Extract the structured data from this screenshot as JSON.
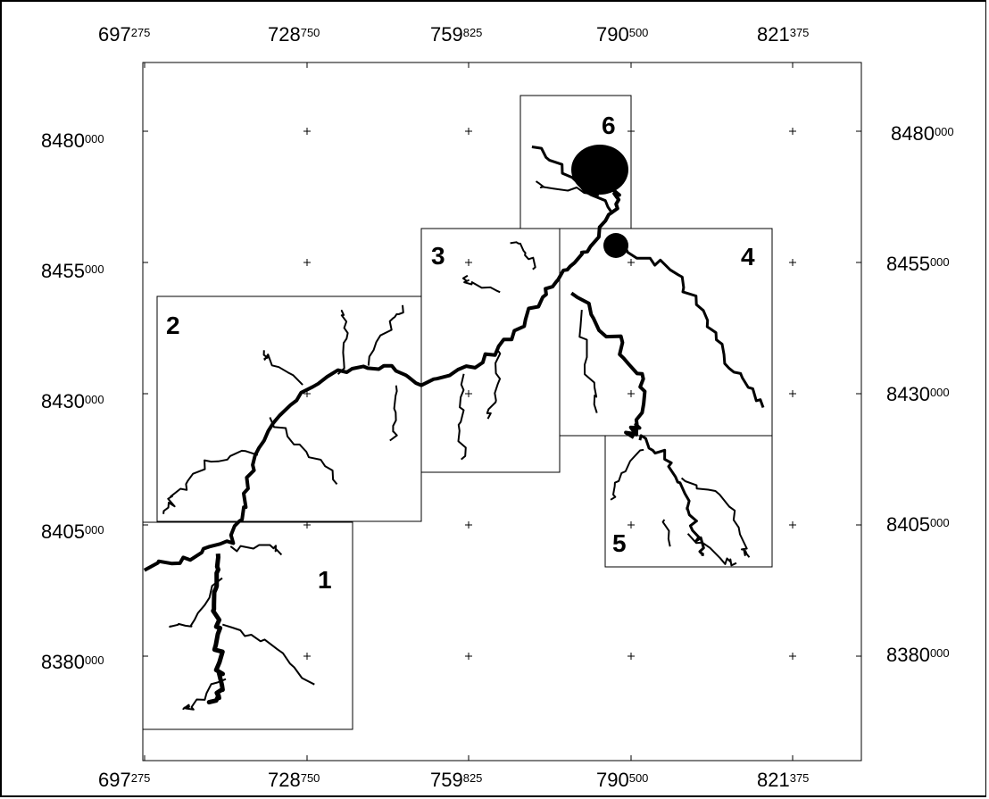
{
  "x_ticks": [
    {
      "major": "697",
      "minor": "275"
    },
    {
      "major": "728",
      "minor": "750"
    },
    {
      "major": "759",
      "minor": "825"
    },
    {
      "major": "790",
      "minor": "500"
    },
    {
      "major": "821",
      "minor": "375"
    }
  ],
  "y_ticks": [
    {
      "major": "8480",
      "minor": "000"
    },
    {
      "major": "8455",
      "minor": "000"
    },
    {
      "major": "8430",
      "minor": "000"
    },
    {
      "major": "8405",
      "minor": "000"
    },
    {
      "major": "8380",
      "minor": "000"
    }
  ],
  "zones": [
    {
      "id": "1"
    },
    {
      "id": "2"
    },
    {
      "id": "3"
    },
    {
      "id": "4"
    },
    {
      "id": "5"
    },
    {
      "id": "6"
    }
  ],
  "colors": {
    "ink": "#000000",
    "background": "#ffffff"
  }
}
